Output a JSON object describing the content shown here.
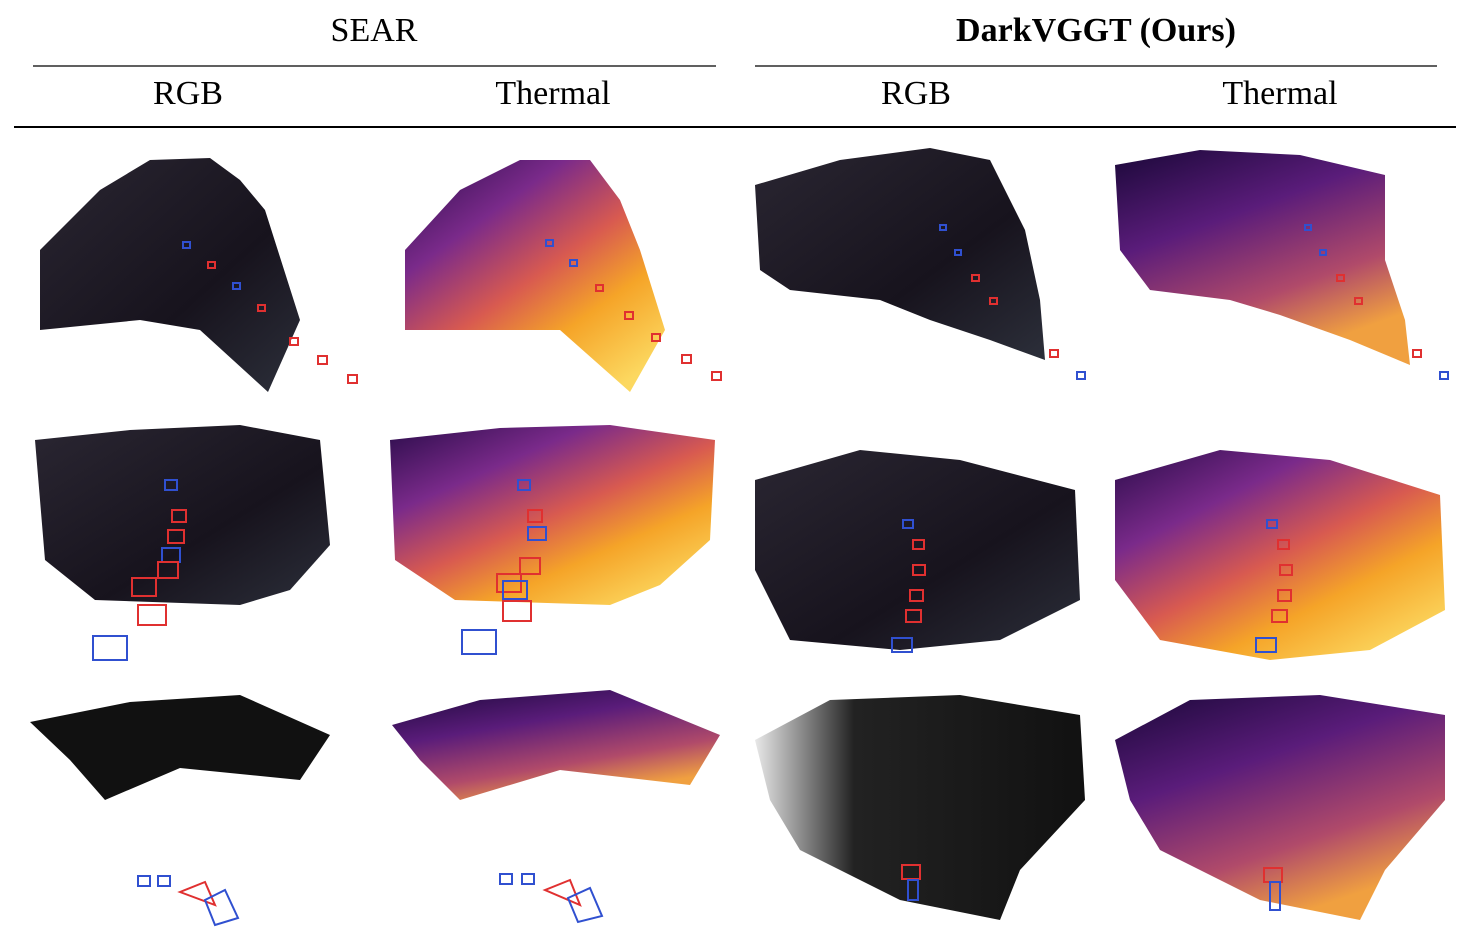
{
  "header": {
    "groups": [
      {
        "title": "SEAR",
        "columns": [
          "RGB",
          "Thermal"
        ]
      },
      {
        "title": "DarkVGGT (Ours)",
        "columns": [
          "RGB",
          "Thermal"
        ]
      }
    ]
  }
}
